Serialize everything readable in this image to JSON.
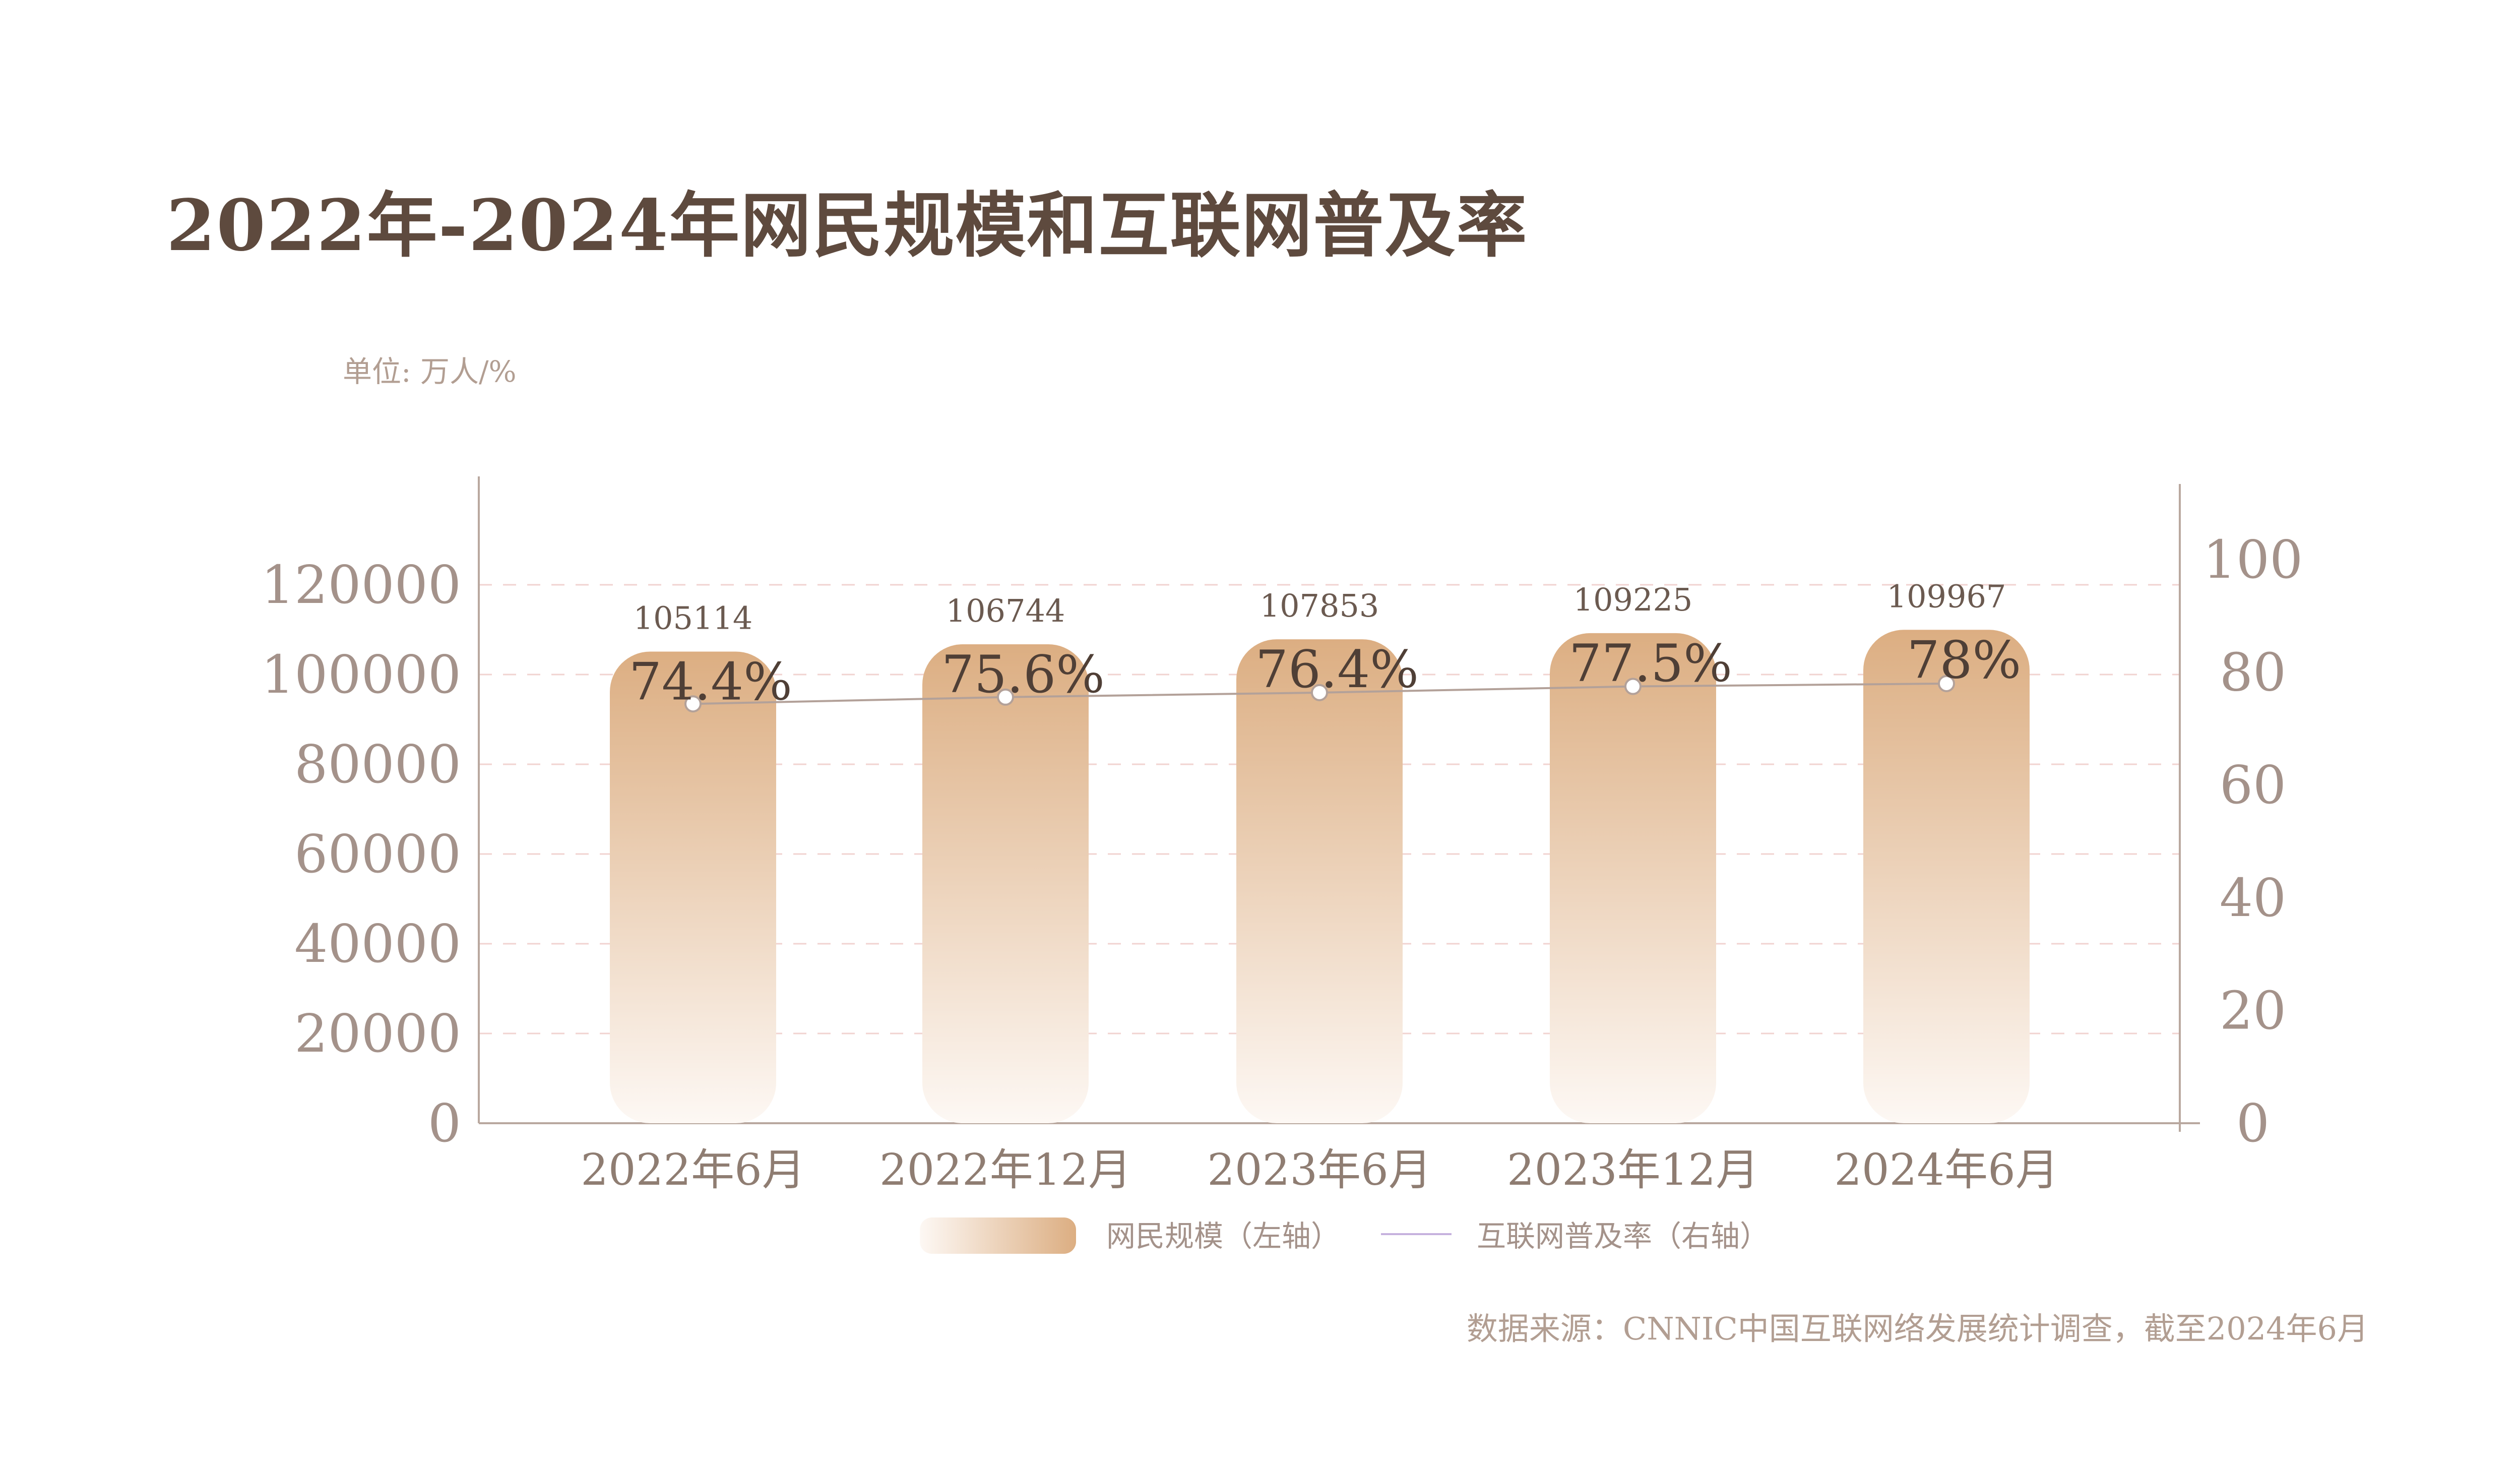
{
  "title": "2022年-2024年网民规模和互联网普及率",
  "unit_label": "单位: 万人/%",
  "source": "数据来源：CNNIC中国互联网络发展统计调查，截至2024年6月",
  "colors": {
    "bar_top": "#dcae82",
    "bar_bottom": "#fdf8f4",
    "line": "#b3a199",
    "grid": "#f1d3d0",
    "axis": "#b9a89f"
  },
  "chart_data": {
    "type": "bar",
    "categories": [
      "2022年6月",
      "2022年12月",
      "2023年6月",
      "2023年12月",
      "2024年6月"
    ],
    "series": [
      {
        "name": "网民规模（左轴）",
        "type": "bar",
        "axis": "left",
        "values": [
          105114,
          106744,
          107853,
          109225,
          109967
        ],
        "labels": [
          "105114",
          "106744",
          "107853",
          "109225",
          "109967"
        ]
      },
      {
        "name": "互联网普及率（右轴）",
        "type": "line",
        "axis": "right",
        "values": [
          74.4,
          75.6,
          76.4,
          77.5,
          78
        ],
        "labels": [
          "74.4%",
          "75.6%",
          "76.4%",
          "77.5%",
          "78%"
        ]
      }
    ],
    "y_left": {
      "ticks": [
        "0",
        "20000",
        "40000",
        "60000",
        "80000",
        "100000",
        "120000"
      ]
    },
    "y_right": {
      "ticks": [
        "0",
        "20",
        "40",
        "60",
        "80",
        "100"
      ]
    },
    "grid": true,
    "legend": "bottom"
  }
}
